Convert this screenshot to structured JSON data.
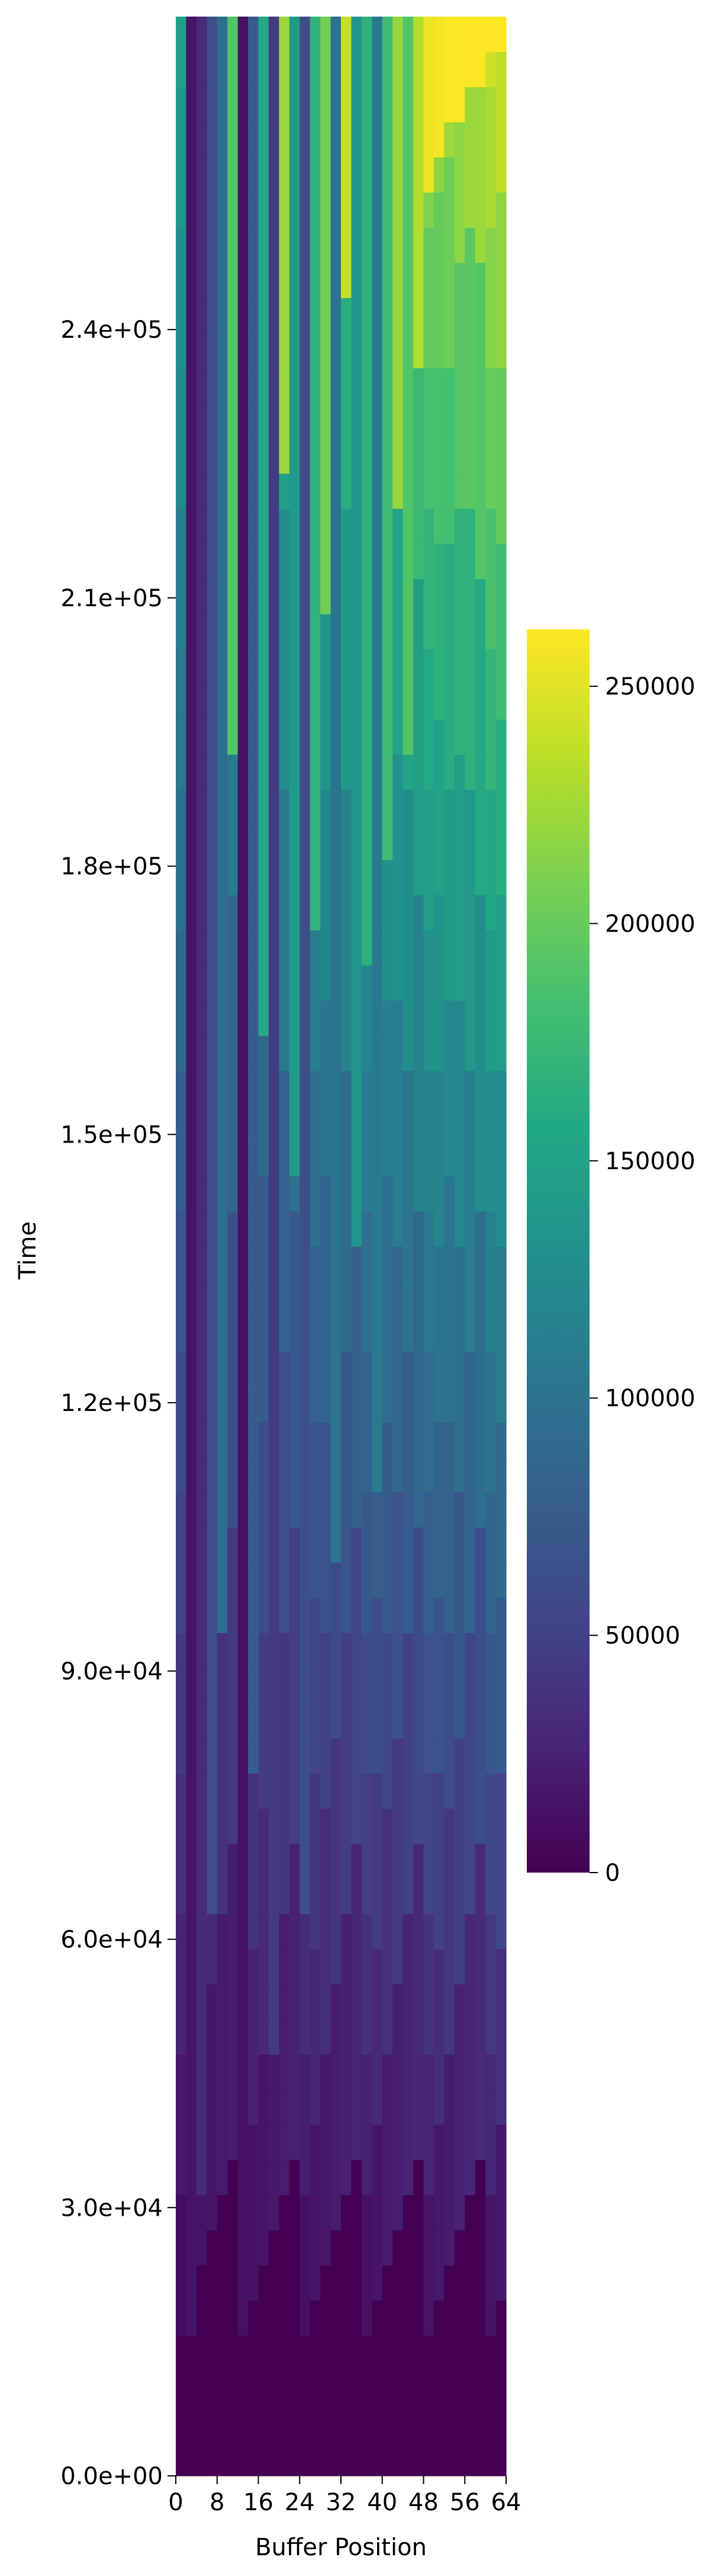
{
  "chart_data": {
    "type": "heatmap",
    "title": "",
    "xlabel": "Buffer Position",
    "ylabel": "Time",
    "x_range": [
      0,
      64
    ],
    "y_range": [
      0,
      275000
    ],
    "x_ticks": [
      {
        "value": 0,
        "label": "0"
      },
      {
        "value": 8,
        "label": "8"
      },
      {
        "value": 16,
        "label": "16"
      },
      {
        "value": 24,
        "label": "24"
      },
      {
        "value": 32,
        "label": "32"
      },
      {
        "value": 40,
        "label": "40"
      },
      {
        "value": 48,
        "label": "48"
      },
      {
        "value": 56,
        "label": "56"
      },
      {
        "value": 64,
        "label": "64"
      }
    ],
    "y_ticks": [
      {
        "value": 0,
        "label": "0.0e+00"
      },
      {
        "value": 30000,
        "label": "3.0e+04"
      },
      {
        "value": 60000,
        "label": "6.0e+04"
      },
      {
        "value": 90000,
        "label": "9.0e+04"
      },
      {
        "value": 120000,
        "label": "1.2e+05"
      },
      {
        "value": 150000,
        "label": "1.5e+05"
      },
      {
        "value": 180000,
        "label": "1.8e+05"
      },
      {
        "value": 210000,
        "label": "2.1e+05"
      },
      {
        "value": 240000,
        "label": "2.4e+05"
      }
    ],
    "colormap": "viridis",
    "colorbar": {
      "range": [
        0,
        262000
      ],
      "ticks": [
        {
          "value": 0,
          "label": "0"
        },
        {
          "value": 50000,
          "label": "50000"
        },
        {
          "value": 100000,
          "label": "100000"
        },
        {
          "value": 150000,
          "label": "150000"
        },
        {
          "value": 200000,
          "label": "200000"
        },
        {
          "value": 250000,
          "label": "250000"
        }
      ]
    },
    "columns": [
      {
        "x": 0,
        "time_last_write": 0
      },
      {
        "x": 2,
        "time_last_write": 14500
      },
      {
        "x": 4,
        "time_last_write": 31000
      },
      {
        "x": 6,
        "time_last_write": 62000
      },
      {
        "x": 8,
        "time_last_write": 93000
      },
      {
        "x": 10,
        "time_last_write": 190000
      },
      {
        "x": 12,
        "time_last_write": 12000
      },
      {
        "x": 14,
        "time_last_write": 77000
      },
      {
        "x": 16,
        "time_last_write": 158000
      },
      {
        "x": 18,
        "time_last_write": 45000
      },
      {
        "x": 20,
        "time_last_write": 223000
      },
      {
        "x": 22,
        "time_last_write": 142000
      },
      {
        "x": 24,
        "time_last_write": 62000
      },
      {
        "x": 26,
        "time_last_write": 170000
      },
      {
        "x": 28,
        "time_last_write": 205000
      },
      {
        "x": 30,
        "time_last_write": 100000
      },
      {
        "x": 32,
        "time_last_write": 240000
      },
      {
        "x": 34,
        "time_last_write": 135000
      },
      {
        "x": 36,
        "time_last_write": 166000
      },
      {
        "x": 38,
        "time_last_write": 107000
      },
      {
        "x": 40,
        "time_last_write": 180000
      },
      {
        "x": 42,
        "time_last_write": 220000
      },
      {
        "x": 44,
        "time_last_write": 190000
      },
      {
        "x": 46,
        "time_last_write": 232000
      },
      {
        "x": 48,
        "time_last_write": 255000
      },
      {
        "x": 50,
        "time_last_write": 258000
      },
      {
        "x": 52,
        "time_last_write": 261000
      },
      {
        "x": 54,
        "time_last_write": 263000
      },
      {
        "x": 56,
        "time_last_write": 265000
      },
      {
        "x": 58,
        "time_last_write": 267000
      },
      {
        "x": 60,
        "time_last_write": 269000
      },
      {
        "x": 62,
        "time_last_write": 271000
      }
    ]
  }
}
